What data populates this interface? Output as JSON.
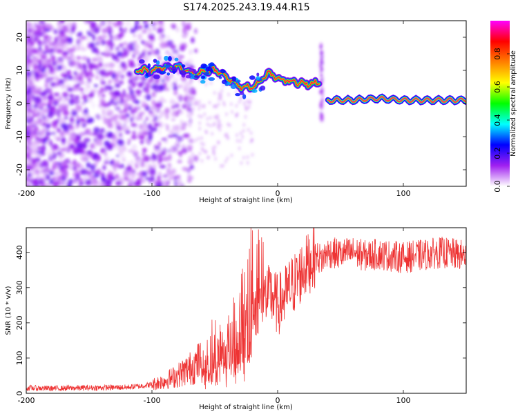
{
  "title": "S174.2025.243.19.44.R15",
  "chart_data": [
    {
      "type": "heatmap",
      "name": "spectrogram",
      "xlabel": "Height of straight line (km)",
      "ylabel": "Frequency (Hz)",
      "xlim": [
        -200,
        150
      ],
      "ylim": [
        -25,
        25
      ],
      "xticks": [
        -200,
        -100,
        0,
        100
      ],
      "yticks": [
        -20,
        -10,
        0,
        10,
        20
      ],
      "colorbar": {
        "label": "Normalized spectral amplitude",
        "range": [
          0,
          1
        ],
        "ticks": [
          "0.0",
          "0.2",
          "0.4",
          "0.6",
          "0.8"
        ],
        "colormap": [
          "#ffffff",
          "#a020f0",
          "#0000ff",
          "#00ffff",
          "#00ff00",
          "#ffff00",
          "#ff8000",
          "#ff0000",
          "#ff00ff"
        ]
      },
      "dominant_ridge": [
        {
          "x": -110,
          "freq": 10,
          "amp": 0.3
        },
        {
          "x": -95,
          "freq": 10.5,
          "amp": 0.3
        },
        {
          "x": -80,
          "freq": 11,
          "amp": 0.3
        },
        {
          "x": -65,
          "freq": 9,
          "amp": 0.25
        },
        {
          "x": -50,
          "freq": 10,
          "amp": 0.3
        },
        {
          "x": -40,
          "freq": 8,
          "amp": 0.3
        },
        {
          "x": -30,
          "freq": 5,
          "amp": 0.3
        },
        {
          "x": -18,
          "freq": 5,
          "amp": 0.5
        },
        {
          "x": -8,
          "freq": 9,
          "amp": 0.6
        },
        {
          "x": 5,
          "freq": 7,
          "amp": 0.8
        },
        {
          "x": 20,
          "freq": 6,
          "amp": 0.85
        },
        {
          "x": 33,
          "freq": 6,
          "amp": 0.8
        },
        {
          "x": 40,
          "freq": 1,
          "amp": 0.95
        },
        {
          "x": 60,
          "freq": 1,
          "amp": 0.95
        },
        {
          "x": 80,
          "freq": 1.5,
          "amp": 0.85
        },
        {
          "x": 100,
          "freq": 1,
          "amp": 0.9
        },
        {
          "x": 125,
          "freq": 1,
          "amp": 0.8
        },
        {
          "x": 150,
          "freq": 1,
          "amp": 0.7
        }
      ]
    },
    {
      "type": "line",
      "name": "snr",
      "xlabel": "Height of straight line (km)",
      "ylabel": "SNR (10 * v/v)",
      "xlim": [
        -200,
        150
      ],
      "ylim": [
        0,
        470
      ],
      "xticks": [
        -200,
        -100,
        0,
        100
      ],
      "yticks": [
        0,
        100,
        200,
        300,
        400
      ],
      "series": [
        {
          "name": "SNR",
          "color": "#ee3333",
          "x": [
            -200,
            -180,
            -160,
            -140,
            -120,
            -110,
            -100,
            -90,
            -80,
            -70,
            -60,
            -50,
            -45,
            -40,
            -35,
            -30,
            -25,
            -20,
            -15,
            -10,
            -5,
            0,
            5,
            10,
            15,
            20,
            25,
            30,
            35,
            40,
            50,
            60,
            70,
            80,
            90,
            100,
            110,
            120,
            130,
            140,
            150
          ],
          "values": [
            15,
            14,
            15,
            16,
            17,
            20,
            25,
            35,
            50,
            70,
            95,
            120,
            140,
            160,
            190,
            210,
            230,
            240,
            255,
            270,
            280,
            250,
            270,
            300,
            320,
            350,
            370,
            390,
            380,
            400,
            395,
            400,
            390,
            395,
            390,
            385,
            390,
            395,
            400,
            395,
            390
          ]
        }
      ]
    }
  ]
}
